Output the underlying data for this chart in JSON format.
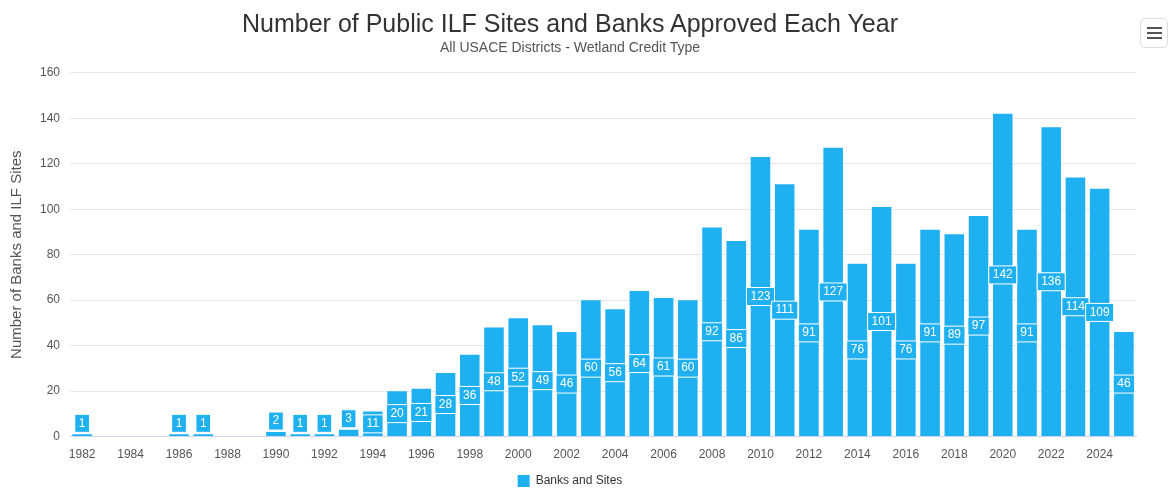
{
  "chart_data": {
    "type": "bar",
    "title": "Number of Public ILF Sites and Banks Approved Each Year",
    "subtitle": "All USACE Districts - Wetland Credit Type",
    "ylabel": "Number of Banks and ILF Sites",
    "categories": [
      "1982",
      null,
      "1984",
      null,
      "1986",
      null,
      "1988",
      null,
      "1990",
      null,
      "1992",
      null,
      "1994",
      null,
      "1996",
      null,
      "1998",
      null,
      "2000",
      null,
      "2002",
      null,
      "2004",
      null,
      "2006",
      null,
      "2008",
      null,
      "2010",
      null,
      "2012",
      null,
      "2014",
      null,
      "2016",
      null,
      "2018",
      null,
      "2020",
      null,
      "2022",
      null,
      "2024",
      null
    ],
    "series": [
      {
        "name": "Banks and Sites",
        "color": "#1fb0f2",
        "values": [
          1,
          null,
          null,
          null,
          1,
          1,
          null,
          null,
          2,
          1,
          1,
          3,
          11,
          20,
          21,
          28,
          36,
          48,
          52,
          49,
          46,
          60,
          56,
          64,
          61,
          60,
          92,
          86,
          123,
          111,
          91,
          127,
          76,
          101,
          76,
          91,
          89,
          97,
          142,
          91,
          136,
          114,
          109,
          46
        ]
      }
    ],
    "ylim": [
      0,
      160
    ],
    "yticks": [
      0,
      20,
      40,
      60,
      80,
      100,
      120,
      140,
      160
    ],
    "grid": "y",
    "legend": "bottom",
    "data_labels": true
  }
}
